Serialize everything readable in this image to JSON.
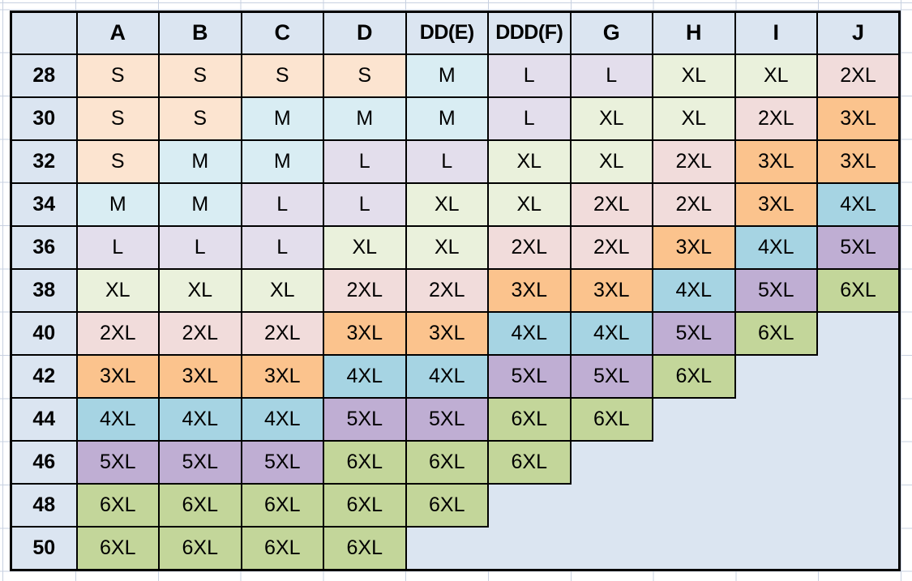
{
  "chart_data": {
    "type": "table",
    "description": "Cup size by band size to apparel size conversion table",
    "corner_label": "",
    "column_headers": [
      "A",
      "B",
      "C",
      "D",
      "DD(E)",
      "DDD(F)",
      "G",
      "H",
      "I",
      "J"
    ],
    "row_headers": [
      "28",
      "30",
      "32",
      "34",
      "36",
      "38",
      "40",
      "42",
      "44",
      "46",
      "48",
      "50"
    ],
    "cells": [
      [
        "S",
        "S",
        "S",
        "S",
        "M",
        "L",
        "L",
        "XL",
        "XL",
        "2XL"
      ],
      [
        "S",
        "S",
        "M",
        "M",
        "M",
        "L",
        "XL",
        "XL",
        "2XL",
        "3XL"
      ],
      [
        "S",
        "M",
        "M",
        "L",
        "L",
        "XL",
        "XL",
        "2XL",
        "3XL",
        "3XL"
      ],
      [
        "M",
        "M",
        "L",
        "L",
        "XL",
        "XL",
        "2XL",
        "2XL",
        "3XL",
        "4XL"
      ],
      [
        "L",
        "L",
        "L",
        "XL",
        "XL",
        "2XL",
        "2XL",
        "3XL",
        "4XL",
        "5XL"
      ],
      [
        "XL",
        "XL",
        "XL",
        "2XL",
        "2XL",
        "3XL",
        "3XL",
        "4XL",
        "5XL",
        "6XL"
      ],
      [
        "2XL",
        "2XL",
        "2XL",
        "3XL",
        "3XL",
        "4XL",
        "4XL",
        "5XL",
        "6XL",
        ""
      ],
      [
        "3XL",
        "3XL",
        "3XL",
        "4XL",
        "4XL",
        "5XL",
        "5XL",
        "6XL",
        "",
        ""
      ],
      [
        "4XL",
        "4XL",
        "4XL",
        "5XL",
        "5XL",
        "6XL",
        "6XL",
        "",
        "",
        ""
      ],
      [
        "5XL",
        "5XL",
        "5XL",
        "6XL",
        "6XL",
        "6XL",
        "",
        "",
        "",
        ""
      ],
      [
        "6XL",
        "6XL",
        "6XL",
        "6XL",
        "6XL",
        "",
        "",
        "",
        "",
        ""
      ],
      [
        "6XL",
        "6XL",
        "6XL",
        "6XL",
        "",
        "",
        "",
        "",
        "",
        ""
      ]
    ]
  },
  "colors": {
    "header_fill": "#dbe5f1",
    "empty_fill": "#dbe5f1",
    "border": "#000000",
    "gridline": "#c7d0e0",
    "canvas": "#ffffff",
    "size_fills": {
      "S": "#fce4d0",
      "M": "#d9edf3",
      "L": "#e3deec",
      "XL": "#eaf1dc",
      "2XL": "#f1dcdb",
      "3XL": "#fbc38d",
      "4XL": "#a6d4e3",
      "5XL": "#bfaed3",
      "6XL": "#c3d69a"
    }
  }
}
